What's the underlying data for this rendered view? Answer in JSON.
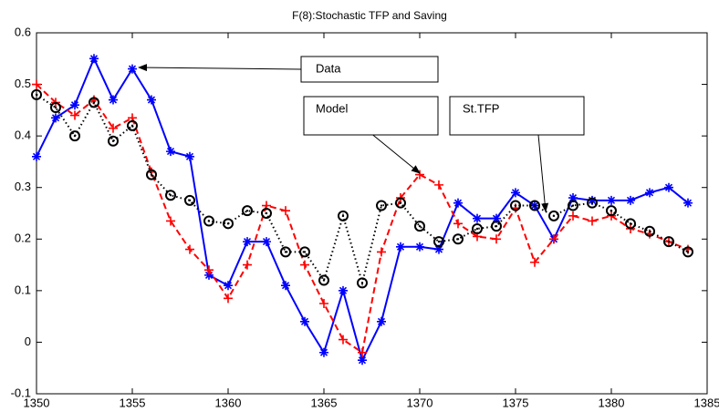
{
  "chart_data": {
    "type": "line",
    "title": "F(8):Stochastic TFP and Saving",
    "x": [
      1350,
      1351,
      1352,
      1353,
      1354,
      1355,
      1356,
      1357,
      1358,
      1359,
      1360,
      1361,
      1362,
      1363,
      1364,
      1365,
      1366,
      1367,
      1368,
      1369,
      1370,
      1371,
      1372,
      1373,
      1374,
      1375,
      1376,
      1377,
      1378,
      1379,
      1380,
      1381,
      1382,
      1383,
      1384
    ],
    "series": [
      {
        "name": "Data",
        "color": "#0000ff",
        "marker": "asterisk",
        "dash": "solid",
        "values": [
          0.36,
          0.435,
          0.46,
          0.55,
          0.47,
          0.53,
          0.47,
          0.37,
          0.36,
          0.13,
          0.11,
          0.195,
          0.195,
          0.11,
          0.04,
          -0.02,
          0.1,
          -0.035,
          0.04,
          0.185,
          0.185,
          0.18,
          0.27,
          0.24,
          0.24,
          0.29,
          0.265,
          0.2,
          0.28,
          0.275,
          0.275,
          0.275,
          0.29,
          0.3,
          0.27
        ]
      },
      {
        "name": "Model",
        "color": "#ff0000",
        "marker": "plus",
        "dash": "dashed",
        "values": [
          0.5,
          0.465,
          0.44,
          0.47,
          0.415,
          0.435,
          0.33,
          0.235,
          0.18,
          0.14,
          0.085,
          0.15,
          0.265,
          0.255,
          0.15,
          0.075,
          0.005,
          -0.02,
          0.175,
          0.28,
          0.325,
          0.305,
          0.23,
          0.205,
          0.2,
          0.26,
          0.155,
          0.2,
          0.245,
          0.235,
          0.245,
          0.22,
          0.21,
          0.195,
          0.18
        ]
      },
      {
        "name": "St.TFP",
        "color": "#000000",
        "marker": "circle",
        "dash": "dotted",
        "values": [
          0.48,
          0.455,
          0.4,
          0.465,
          0.39,
          0.42,
          0.325,
          0.285,
          0.275,
          0.235,
          0.23,
          0.255,
          0.25,
          0.175,
          0.175,
          0.12,
          0.245,
          0.115,
          0.265,
          0.27,
          0.225,
          0.195,
          0.2,
          0.22,
          0.225,
          0.265,
          0.265,
          0.245,
          0.265,
          0.27,
          0.255,
          0.23,
          0.215,
          0.195,
          0.175
        ]
      }
    ],
    "xlim": [
      1350,
      1385
    ],
    "xticks": [
      1350,
      1355,
      1360,
      1365,
      1370,
      1375,
      1380,
      1385
    ],
    "ylim": [
      -0.1,
      0.6
    ],
    "yticks": [
      -0.1,
      0,
      0.1,
      0.2,
      0.3,
      0.4,
      0.5,
      0.6
    ],
    "grid": false
  }
}
